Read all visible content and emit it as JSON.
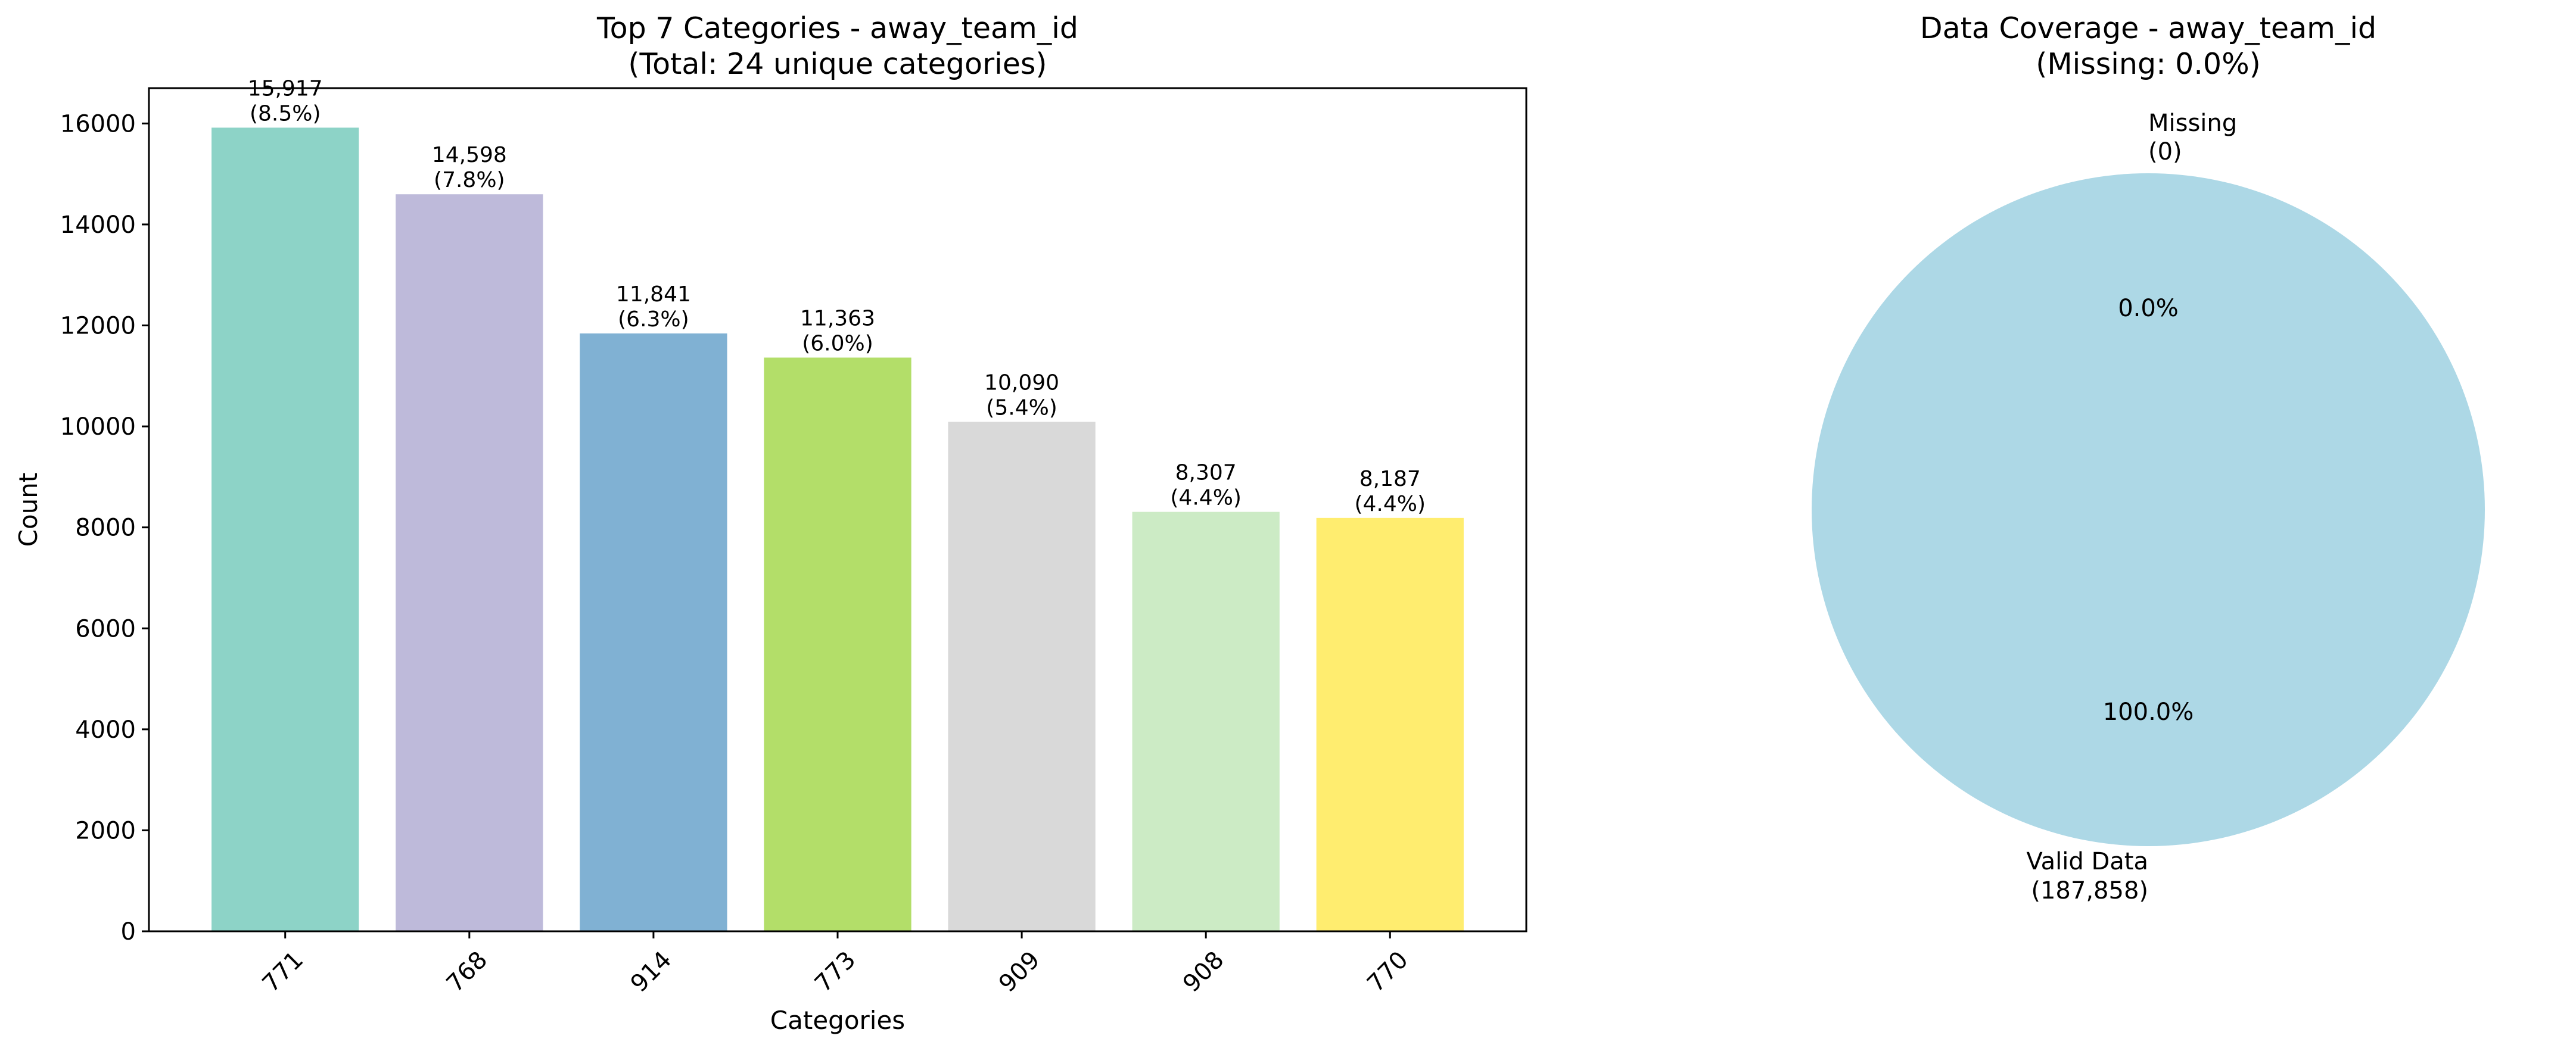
{
  "chart_data": [
    {
      "type": "bar",
      "title": "Top 7 Categories - away_team_id",
      "subtitle": "(Total: 24 unique categories)",
      "xlabel": "Categories",
      "ylabel": "Count",
      "ylim": [
        0,
        16700
      ],
      "yticks": [
        0,
        2000,
        4000,
        6000,
        8000,
        10000,
        12000,
        14000,
        16000
      ],
      "ytick_labels": [
        "0",
        "2000",
        "4000",
        "6000",
        "8000",
        "10000",
        "12000",
        "14000",
        "16000"
      ],
      "categories": [
        "771",
        "768",
        "914",
        "773",
        "909",
        "908",
        "770"
      ],
      "values": [
        15917,
        14598,
        11841,
        11363,
        10090,
        8307,
        8187
      ],
      "value_labels": [
        "15,917",
        "14,598",
        "11,841",
        "11,363",
        "10,090",
        "8,307",
        "8,187"
      ],
      "percent_labels": [
        "(8.5%)",
        "(7.8%)",
        "(6.3%)",
        "(6.0%)",
        "(5.4%)",
        "(4.4%)",
        "(4.4%)"
      ],
      "colors": [
        "#8dd3c7",
        "#bebada",
        "#80b1d3",
        "#b3de69",
        "#d9d9d9",
        "#ccebc5",
        "#ffed6f"
      ],
      "grid": false,
      "xtick_rotation": "45"
    },
    {
      "type": "pie",
      "title": "Data Coverage - away_team_id",
      "subtitle": "(Missing: 0.0%)",
      "slices": [
        {
          "label_line1": "Valid Data",
          "label_line2": "(187,858)",
          "value": 187858,
          "pct": "100.0%",
          "color": "#add8e6"
        },
        {
          "label_line1": "Missing",
          "label_line2": "(0)",
          "value": 0,
          "pct": "0.0%",
          "color": "#f08080"
        }
      ]
    }
  ]
}
